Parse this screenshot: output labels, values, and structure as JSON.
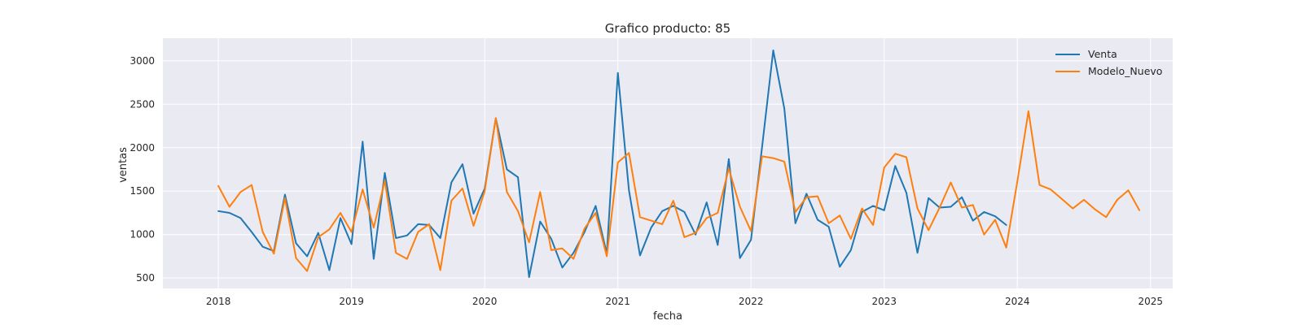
{
  "chart_data": {
    "type": "line",
    "title": "Grafico producto: 85",
    "xlabel": "fecha",
    "ylabel": "ventas",
    "xlim": [
      "2017-08-01",
      "2025-03-01"
    ],
    "ylim": [
      380,
      3260
    ],
    "x_ticks": [
      "2018",
      "2019",
      "2020",
      "2021",
      "2022",
      "2023",
      "2024",
      "2025"
    ],
    "y_ticks": [
      500,
      1000,
      1500,
      2000,
      2500,
      3000
    ],
    "grid": true,
    "legend_position": "top-right",
    "series": [
      {
        "name": "Venta",
        "color": "#1f77b4",
        "start": "2018-01",
        "values": [
          1270,
          1250,
          1190,
          1030,
          860,
          810,
          1460,
          900,
          750,
          1020,
          590,
          1190,
          890,
          2070,
          720,
          1710,
          960,
          990,
          1120,
          1110,
          960,
          1600,
          1810,
          1240,
          1530,
          2340,
          1750,
          1660,
          510,
          1150,
          950,
          620,
          790,
          1030,
          1330,
          780,
          2860,
          1510,
          760,
          1080,
          1270,
          1330,
          1260,
          1000,
          1370,
          880,
          1870,
          730,
          940,
          2010,
          3120,
          2450,
          1130,
          1470,
          1170,
          1090,
          630,
          820,
          1260,
          1330,
          1280,
          1790,
          1480,
          790,
          1420,
          1310,
          1320,
          1430,
          1160,
          1260,
          1210,
          1110
        ]
      },
      {
        "name": "Modelo_Nuevo",
        "color": "#ff7f0e",
        "start": "2018-01",
        "values": [
          1560,
          1320,
          1490,
          1570,
          1030,
          780,
          1420,
          730,
          580,
          970,
          1060,
          1250,
          1030,
          1520,
          1080,
          1620,
          790,
          720,
          1030,
          1120,
          590,
          1390,
          1530,
          1100,
          1500,
          2340,
          1490,
          1270,
          910,
          1490,
          820,
          840,
          720,
          1070,
          1250,
          750,
          1830,
          1940,
          1200,
          1160,
          1120,
          1390,
          970,
          1020,
          1190,
          1250,
          1760,
          1320,
          1040,
          1900,
          1880,
          1840,
          1260,
          1430,
          1440,
          1130,
          1220,
          950,
          1300,
          1110,
          1770,
          1930,
          1890,
          1300,
          1050,
          1310,
          1600,
          1310,
          1340,
          1000,
          1170,
          850,
          1610,
          2420,
          1570,
          1520,
          1410,
          1300,
          1400,
          1290,
          1200,
          1400,
          1510,
          1280
        ]
      }
    ]
  }
}
